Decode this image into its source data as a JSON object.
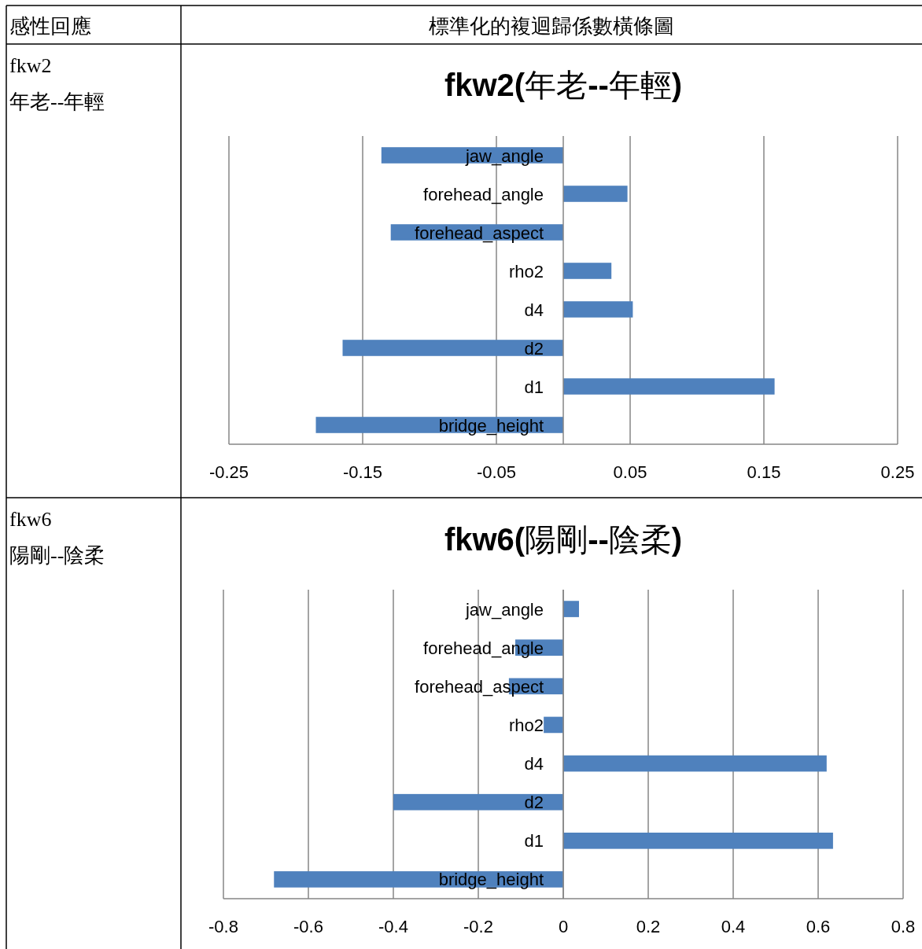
{
  "chart_data": [
    {
      "type": "bar",
      "orientation": "horizontal",
      "title": "fkw2(年老--年輕)",
      "categories": [
        "jaw_angle",
        "forehead_angle",
        "forehead_aspect",
        "rho2",
        "d4",
        "d2",
        "d1",
        "bridge_height"
      ],
      "values": [
        -0.136,
        0.048,
        -0.129,
        0.036,
        0.052,
        -0.165,
        0.158,
        -0.185
      ],
      "color": "#4f81bd",
      "xlim": [
        -0.25,
        0.25
      ],
      "xticks": [
        -0.25,
        -0.15,
        -0.05,
        0.05,
        0.15,
        0.25
      ],
      "grid": "x",
      "annotations": [
        "感性回應",
        "標準化的複迴歸係數橫條圖",
        "fkw2",
        "年老--年輕"
      ]
    },
    {
      "type": "bar",
      "orientation": "horizontal",
      "title": "fkw6(陽剛--陰柔)",
      "categories": [
        "jaw_angle",
        "forehead_angle",
        "forehead_aspect",
        "rho2",
        "d4",
        "d2",
        "d1",
        "bridge_height"
      ],
      "values": [
        0.037,
        -0.113,
        -0.128,
        -0.046,
        0.62,
        -0.4,
        0.635,
        -0.681
      ],
      "color": "#4f81bd",
      "xlim": [
        -0.8,
        0.8
      ],
      "xticks": [
        -0.8,
        -0.6,
        -0.4,
        -0.2,
        0,
        0.2,
        0.4,
        0.6,
        0.8
      ],
      "grid": "x",
      "annotations": [
        "fkw6",
        "陽剛--陰柔"
      ]
    }
  ]
}
